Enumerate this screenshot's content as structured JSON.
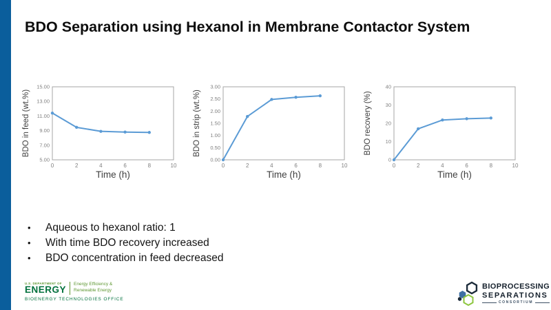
{
  "slide": {
    "title": "BDO Separation using Hexanol in Membrane Contactor System",
    "accent_bar_color": "#0A5E9C"
  },
  "chart_data": [
    {
      "type": "line",
      "title": "",
      "xlabel": "Time (h)",
      "ylabel": "BDO in feed (wt.%)",
      "x": [
        0,
        2,
        4,
        6,
        8
      ],
      "series": [
        {
          "name": "BDO in feed",
          "values": [
            11.4,
            9.45,
            8.9,
            8.8,
            8.75
          ]
        }
      ],
      "xlim": [
        0,
        10
      ],
      "ylim": [
        5,
        15
      ],
      "xtick_step": 2,
      "ytick_step": 2,
      "ytick_decimals": 2,
      "grid": false,
      "legend": "none",
      "line_color": "#5B9BD5"
    },
    {
      "type": "line",
      "title": "",
      "xlabel": "Time (h)",
      "ylabel": "BDO in strip (wt.%)",
      "x": [
        0,
        2,
        4,
        6,
        8
      ],
      "series": [
        {
          "name": "BDO in strip",
          "values": [
            0.0,
            1.78,
            2.48,
            2.57,
            2.63
          ]
        }
      ],
      "xlim": [
        0,
        10
      ],
      "ylim": [
        0,
        3
      ],
      "xtick_step": 2,
      "ytick_step": 0.5,
      "ytick_decimals": 2,
      "grid": false,
      "legend": "none",
      "line_color": "#5B9BD5"
    },
    {
      "type": "line",
      "title": "",
      "xlabel": "Time (h)",
      "ylabel": "BDO recovery (%)",
      "x": [
        0,
        2,
        4,
        6,
        8
      ],
      "series": [
        {
          "name": "BDO recovery",
          "values": [
            0,
            17,
            21.8,
            22.5,
            22.9
          ]
        }
      ],
      "xlim": [
        0,
        10
      ],
      "ylim": [
        0,
        40
      ],
      "xtick_step": 2,
      "ytick_step": 10,
      "ytick_decimals": 0,
      "grid": false,
      "legend": "none",
      "line_color": "#5B9BD5"
    }
  ],
  "bullets": [
    "Aqueous to hexanol ratio: 1",
    "With time BDO recovery increased",
    "BDO concentration in feed decreased"
  ],
  "footer": {
    "doe": {
      "dept": "U.S. DEPARTMENT OF",
      "energy": "ENERGY",
      "eere_line1": "Energy Efficiency &",
      "eere_line2": "Renewable Energy",
      "office": "BIOENERGY TECHNOLOGIES OFFICE",
      "green_dark": "#00703C",
      "green_mid": "#5E9732"
    },
    "consortium": {
      "line1": "BIOPROCESSING",
      "line2": "SEPARATIONS",
      "line3": "CONSORTIUM",
      "navy": "#1C2B3A",
      "blue": "#3E6FA3",
      "green": "#8DC63F"
    }
  }
}
